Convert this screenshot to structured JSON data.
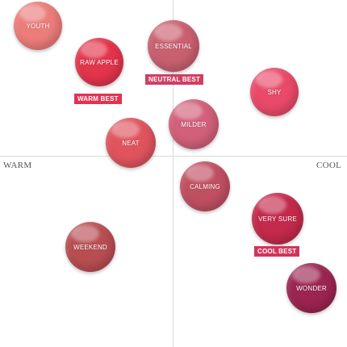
{
  "axes": {
    "left_label": "WARM",
    "right_label": "COOL"
  },
  "swatches": [
    {
      "label": "YOUTH",
      "color": "#ec7d7b"
    },
    {
      "label": "RAW APPLE",
      "color": "#e3354c"
    },
    {
      "label": "ESSENTIAL",
      "color": "#c96070"
    },
    {
      "label": "SHY",
      "color": "#ea4a6a"
    },
    {
      "label": "MILDER",
      "color": "#d2607a"
    },
    {
      "label": "NEAT",
      "color": "#e0545e"
    },
    {
      "label": "CALMING",
      "color": "#c14f62"
    },
    {
      "label": "VERY SURE",
      "color": "#c42a4b"
    },
    {
      "label": "WEEKEND",
      "color": "#b84e52"
    },
    {
      "label": "WONDER",
      "color": "#9b2550"
    }
  ],
  "badges": [
    {
      "label": "WARM BEST",
      "color": "#e3334f"
    },
    {
      "label": "NEUTRAL BEST",
      "color": "#cf4062"
    },
    {
      "label": "COOL BEST",
      "color": "#d2345a"
    }
  ]
}
